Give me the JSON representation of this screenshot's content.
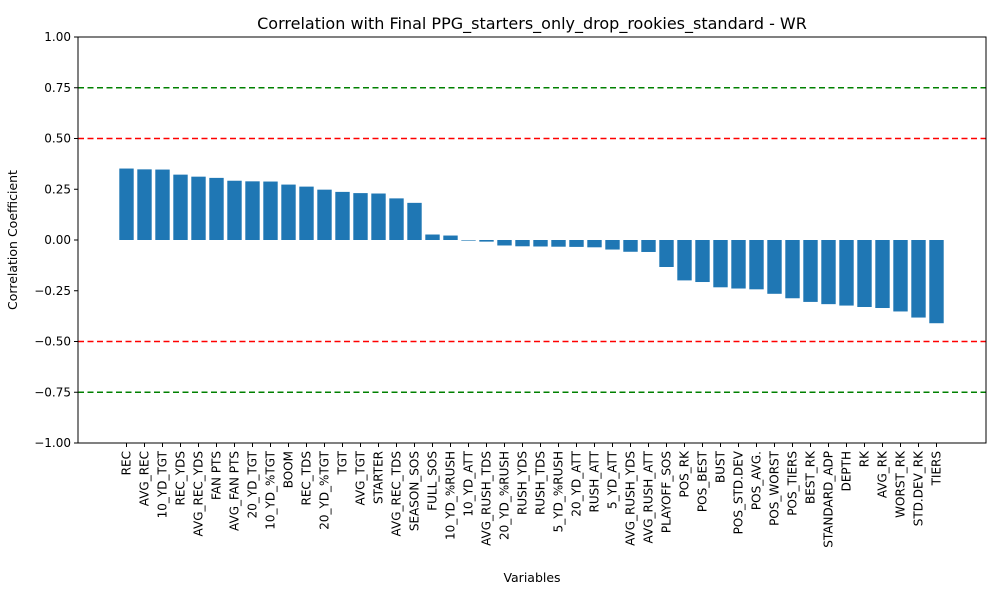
{
  "chart_data": {
    "type": "bar",
    "title": "Correlation with Final PPG_starters_only_drop_rookies_standard - WR",
    "xlabel": "Variables",
    "ylabel": "Correlation Coefficient",
    "ylim": [
      -1.0,
      1.0
    ],
    "yticks": [
      "−1.00",
      "−0.75",
      "−0.50",
      "−0.25",
      "0.00",
      "0.25",
      "0.50",
      "0.75",
      "1.00"
    ],
    "ytick_values": [
      -1.0,
      -0.75,
      -0.5,
      -0.25,
      0.0,
      0.25,
      0.5,
      0.75,
      1.0
    ],
    "bar_color": "#1f77b4",
    "reference_lines": [
      {
        "value": 0.75,
        "color": "#008000",
        "style": "dashed"
      },
      {
        "value": 0.5,
        "color": "#ff0000",
        "style": "dashed"
      },
      {
        "value": -0.5,
        "color": "#ff0000",
        "style": "dashed"
      },
      {
        "value": -0.75,
        "color": "#008000",
        "style": "dashed"
      }
    ],
    "grid": false,
    "categories": [
      "REC",
      "AVG_REC",
      "10_YD_TGT",
      "REC_YDS",
      "AVG_REC_YDS",
      "FAN PTS",
      "AVG_FAN PTS",
      "20_YD_TGT",
      "10_YD_%TGT",
      "BOOM",
      "REC_TDS",
      "20_YD_%TGT",
      "TGT",
      "AVG_TGT",
      "STARTER",
      "AVG_REC_TDS",
      "SEASON_SOS",
      "FULL_SOS",
      "10_YD_%RUSH",
      "10_YD_ATT",
      "AVG_RUSH_TDS",
      "20_YD_%RUSH",
      "RUSH_YDS",
      "RUSH_TDS",
      "5_YD_%RUSH",
      "20_YD_ATT",
      "RUSH_ATT",
      "5_YD_ATT",
      "AVG_RUSH_YDS",
      "AVG_RUSH_ATT",
      "PLAYOFF_SOS",
      "POS_RK",
      "POS_BEST",
      "BUST",
      "POS_STD.DEV",
      "POS_AVG.",
      "POS_WORST",
      "POS_TIERS",
      "BEST_RK",
      "STANDARD_ADP",
      "DEPTH",
      "RK",
      "AVG_RK",
      "WORST_RK",
      "STD.DEV_RK",
      "TIERS"
    ],
    "values": [
      0.352,
      0.348,
      0.347,
      0.322,
      0.312,
      0.306,
      0.292,
      0.289,
      0.288,
      0.273,
      0.263,
      0.248,
      0.237,
      0.231,
      0.229,
      0.205,
      0.183,
      0.027,
      0.022,
      0.0,
      -0.008,
      -0.027,
      -0.031,
      -0.032,
      -0.033,
      -0.034,
      -0.036,
      -0.047,
      -0.058,
      -0.059,
      -0.133,
      -0.199,
      -0.207,
      -0.233,
      -0.239,
      -0.243,
      -0.265,
      -0.287,
      -0.305,
      -0.316,
      -0.323,
      -0.33,
      -0.335,
      -0.352,
      -0.382,
      -0.41
    ]
  }
}
